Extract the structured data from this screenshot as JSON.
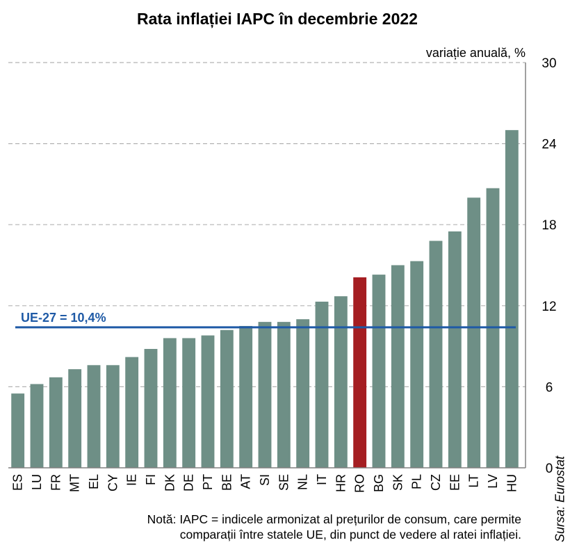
{
  "chart_data": {
    "type": "bar",
    "title": "Rata inflației IAPC în decembrie 2022",
    "ylabel": "variație anuală, %",
    "xlabel": "",
    "ylim": [
      0,
      30
    ],
    "yticks": [
      "0",
      "6",
      "12",
      "18",
      "24",
      "30"
    ],
    "grid": true,
    "categories": [
      "ES",
      "LU",
      "FR",
      "MT",
      "EL",
      "CY",
      "IE",
      "FI",
      "DK",
      "DE",
      "PT",
      "BE",
      "AT",
      "SI",
      "SE",
      "NL",
      "IT",
      "HR",
      "RO",
      "BG",
      "SK",
      "PL",
      "CZ",
      "EE",
      "LT",
      "LV",
      "HU"
    ],
    "values": [
      5.5,
      6.2,
      6.7,
      7.3,
      7.6,
      7.6,
      8.2,
      8.8,
      9.6,
      9.6,
      9.8,
      10.2,
      10.5,
      10.8,
      10.8,
      11.0,
      12.3,
      12.7,
      14.1,
      14.3,
      15.0,
      15.3,
      16.8,
      17.5,
      20.0,
      20.7,
      25.0
    ],
    "highlight": "RO",
    "colors": {
      "bar": "#6e8f86",
      "highlight": "#a51e22",
      "reference": "#1f5aa6",
      "grid": "#b3b3b3"
    },
    "reference_line": {
      "label": "UE-27 = 10,4%",
      "value": 10.4
    }
  },
  "note": {
    "line1": "Notă: IAPC = indicele armonizat al prețurilor de consum, care permite",
    "line2": "comparații între statele UE, din punct de vedere al ratei inflației."
  },
  "source": "Sursa: Eurostat"
}
